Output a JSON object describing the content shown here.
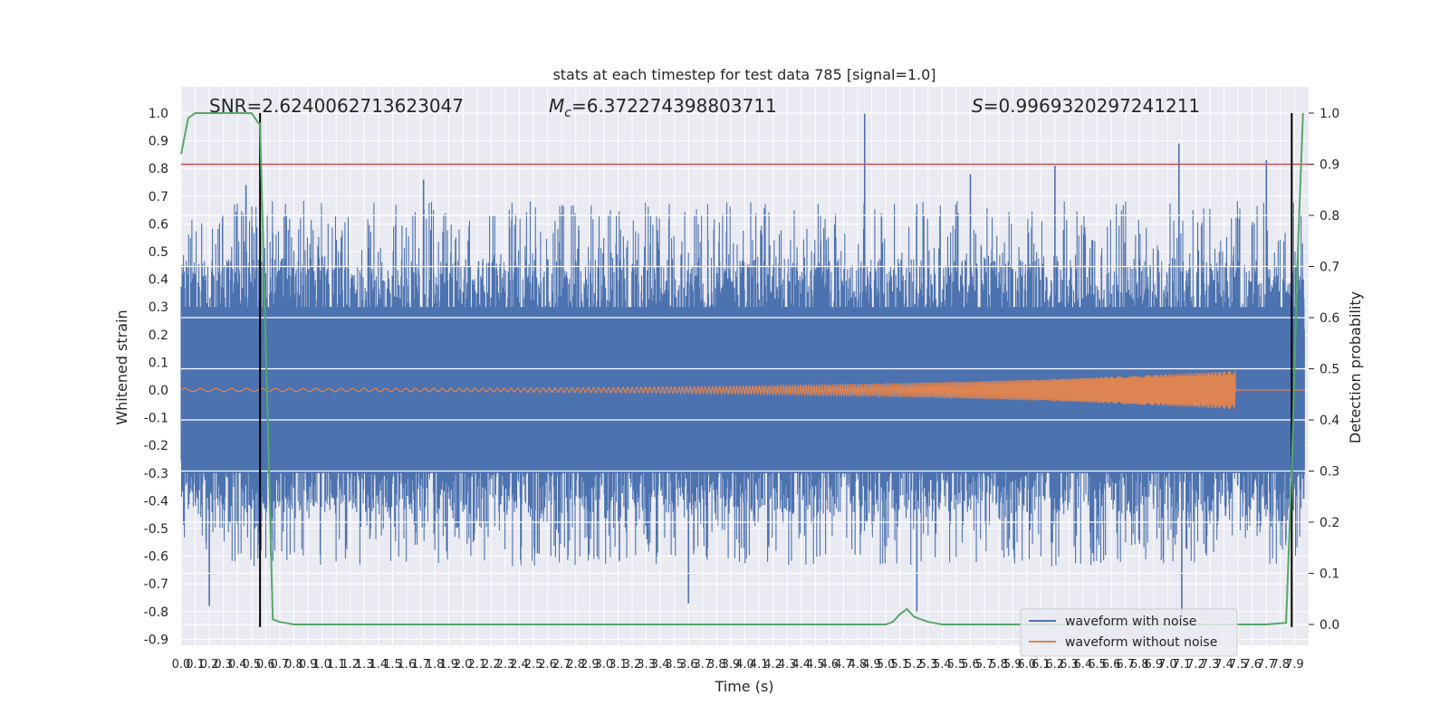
{
  "chart_data": {
    "type": "line",
    "title": "stats at each timestep for test data 785 [signal=1.0]",
    "xlabel": "Time (s)",
    "ylabel": "Whitened strain",
    "y2label": "Detection probability",
    "xlim": [
      0.0,
      8.0
    ],
    "ylim": [
      -0.95,
      1.05
    ],
    "y2lim": [
      -0.05,
      1.02
    ],
    "x_ticks": [
      0.0,
      0.1,
      0.2,
      0.3,
      0.4,
      0.5,
      0.6,
      0.7,
      0.8,
      0.9,
      1.0,
      1.1,
      1.2,
      1.3,
      1.4,
      1.5,
      1.6,
      1.7,
      1.8,
      1.9,
      2.0,
      2.1,
      2.2,
      2.3,
      2.4,
      2.5,
      2.6,
      2.7,
      2.8,
      2.9,
      3.0,
      3.1,
      3.2,
      3.3,
      3.4,
      3.5,
      3.6,
      3.7,
      3.8,
      3.9,
      4.0,
      4.1,
      4.2,
      4.3,
      4.4,
      4.5,
      4.6,
      4.7,
      4.8,
      4.9,
      5.0,
      5.1,
      5.2,
      5.3,
      5.4,
      5.5,
      5.6,
      5.7,
      5.8,
      5.9,
      6.0,
      6.1,
      6.2,
      6.3,
      6.4,
      6.5,
      6.6,
      6.7,
      6.8,
      6.9,
      7.0,
      7.1,
      7.2,
      7.3,
      7.4,
      7.5,
      7.6,
      7.7,
      7.8,
      7.9
    ],
    "y_ticks": [
      1.0,
      0.9,
      0.8,
      0.7,
      0.6,
      0.5,
      0.4,
      0.3,
      0.2,
      0.1,
      0.0,
      -0.1,
      -0.2,
      -0.3,
      -0.4,
      -0.5,
      -0.6,
      -0.7,
      -0.8,
      -0.9
    ],
    "y2_ticks": [
      1.0,
      0.9,
      0.8,
      0.7,
      0.6,
      0.5,
      0.4,
      0.3,
      0.2,
      0.1,
      0.0
    ],
    "grid": true,
    "legend_position": "bottom-right",
    "annotations": {
      "snr": "SNR=2.6240062713623047",
      "mc_symbol": "M",
      "mc_sub": "c",
      "mc_value": "=6.372274398803711",
      "s_symbol": "S",
      "s_value": "=0.9969320297241211"
    },
    "series": [
      {
        "name": "waveform with noise",
        "color": "#4c72b0",
        "description": "dense noisy whitened strain, roughly between -0.8 and 1.0",
        "peaks": [
          {
            "x": 4.85,
            "y": 1.0
          },
          {
            "x": 7.08,
            "y": 0.89
          },
          {
            "x": 7.7,
            "y": 0.83
          },
          {
            "x": 6.2,
            "y": 0.81
          },
          {
            "x": 5.6,
            "y": 0.78
          },
          {
            "x": 0.46,
            "y": 0.74
          },
          {
            "x": 1.72,
            "y": 0.76
          },
          {
            "x": 5.22,
            "y": -0.8
          },
          {
            "x": 7.1,
            "y": -0.82
          },
          {
            "x": 0.2,
            "y": -0.78
          },
          {
            "x": 3.6,
            "y": -0.77
          }
        ]
      },
      {
        "name": "waveform without noise",
        "color": "#dd8452",
        "description": "chirp signal with growing amplitude, ending near 7.48 s",
        "end_time": 7.48,
        "max_amplitude": 0.07
      },
      {
        "name": "Detection probability",
        "color": "#55a868",
        "axis": "right",
        "x": [
          0.0,
          0.05,
          0.1,
          0.2,
          0.3,
          0.4,
          0.5,
          0.55,
          0.56,
          0.6,
          0.65,
          0.7,
          0.8,
          1.0,
          2.0,
          3.0,
          4.0,
          4.5,
          5.0,
          5.05,
          5.1,
          5.15,
          5.2,
          5.3,
          5.4,
          6.0,
          7.0,
          7.7,
          7.84,
          7.88,
          7.92,
          7.96
        ],
        "y": [
          0.92,
          0.99,
          1.0,
          1.0,
          1.0,
          1.0,
          1.0,
          0.98,
          0.98,
          0.55,
          0.01,
          0.005,
          0.0,
          0.0,
          0.0,
          0.0,
          0.0,
          0.0,
          0.0,
          0.005,
          0.02,
          0.03,
          0.015,
          0.005,
          0.0,
          0.0,
          0.0,
          0.0,
          0.003,
          0.3,
          0.7,
          1.0
        ]
      }
    ],
    "threshold_line": {
      "color": "#c44e52",
      "y2": 0.9
    },
    "vertical_lines": [
      {
        "x": 0.56,
        "color": "#000000"
      },
      {
        "x": 7.88,
        "color": "#000000"
      }
    ],
    "bottom_axis_bar": {
      "y": -0.94
    }
  }
}
